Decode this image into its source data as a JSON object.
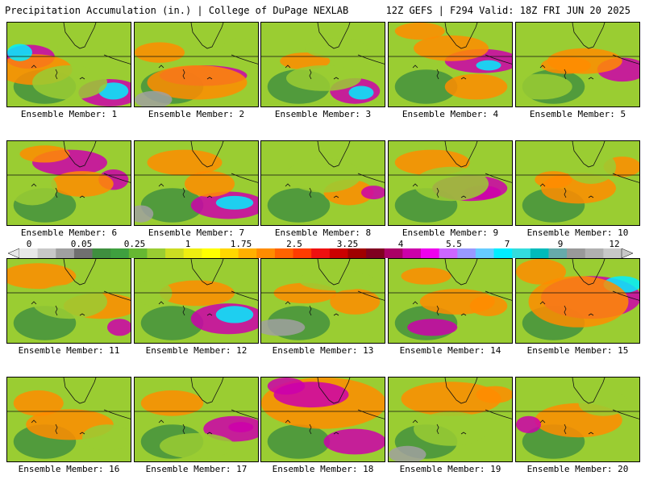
{
  "header": {
    "left": "Precipitation Accumulation (in.) | College of DuPage NEXLAB",
    "right": "12Z GEFS | F294 Valid: 18Z FRI JUN 20 2025"
  },
  "member_prefix": "Ensemble Member: ",
  "members": [
    {
      "id": "1",
      "blobs": [
        [
          0.18,
          0.4,
          0.2,
          0.14,
          3
        ],
        [
          0.22,
          0.55,
          0.3,
          0.18,
          2
        ],
        [
          0.82,
          0.82,
          0.25,
          0.16,
          3
        ],
        [
          0.85,
          0.8,
          0.12,
          0.1,
          4
        ],
        [
          0.1,
          0.35,
          0.1,
          0.1,
          4
        ],
        [
          0.5,
          0.7,
          0.3,
          0.2,
          1
        ],
        [
          0.6,
          0.3,
          0.2,
          0.12,
          1
        ]
      ]
    },
    {
      "id": "2",
      "blobs": [
        [
          0.55,
          0.62,
          0.35,
          0.12,
          3
        ],
        [
          0.5,
          0.7,
          0.4,
          0.2,
          2
        ],
        [
          0.2,
          0.35,
          0.2,
          0.12,
          2
        ],
        [
          0.85,
          0.3,
          0.15,
          0.12,
          1
        ],
        [
          0.15,
          0.9,
          0.15,
          0.1,
          5
        ]
      ]
    },
    {
      "id": "3",
      "blobs": [
        [
          0.75,
          0.8,
          0.2,
          0.15,
          3
        ],
        [
          0.8,
          0.82,
          0.1,
          0.08,
          4
        ],
        [
          0.35,
          0.45,
          0.2,
          0.1,
          2
        ],
        [
          0.6,
          0.3,
          0.25,
          0.12,
          1
        ],
        [
          0.5,
          0.65,
          0.3,
          0.15,
          1
        ]
      ]
    },
    {
      "id": "4",
      "blobs": [
        [
          0.75,
          0.45,
          0.3,
          0.14,
          3
        ],
        [
          0.5,
          0.3,
          0.3,
          0.15,
          2
        ],
        [
          0.25,
          0.1,
          0.2,
          0.1,
          2
        ],
        [
          0.7,
          0.75,
          0.25,
          0.15,
          2
        ],
        [
          0.8,
          0.5,
          0.1,
          0.06,
          4
        ]
      ]
    },
    {
      "id": "5",
      "blobs": [
        [
          0.85,
          0.55,
          0.2,
          0.14,
          3
        ],
        [
          0.55,
          0.45,
          0.3,
          0.15,
          2
        ],
        [
          0.2,
          0.75,
          0.25,
          0.15,
          1
        ],
        [
          0.4,
          0.5,
          0.2,
          0.1,
          2
        ]
      ]
    },
    {
      "id": "6",
      "blobs": [
        [
          0.5,
          0.25,
          0.3,
          0.15,
          3
        ],
        [
          0.3,
          0.15,
          0.2,
          0.1,
          2
        ],
        [
          0.85,
          0.45,
          0.12,
          0.12,
          3
        ],
        [
          0.6,
          0.5,
          0.25,
          0.15,
          2
        ],
        [
          0.2,
          0.55,
          0.2,
          0.2,
          1
        ]
      ]
    },
    {
      "id": "7",
      "blobs": [
        [
          0.75,
          0.75,
          0.3,
          0.16,
          3
        ],
        [
          0.8,
          0.72,
          0.15,
          0.08,
          4
        ],
        [
          0.4,
          0.25,
          0.3,
          0.15,
          2
        ],
        [
          0.6,
          0.5,
          0.2,
          0.15,
          2
        ],
        [
          0.05,
          0.85,
          0.1,
          0.1,
          5
        ]
      ]
    },
    {
      "id": "8",
      "blobs": [
        [
          0.7,
          0.6,
          0.2,
          0.15,
          2
        ],
        [
          0.9,
          0.6,
          0.1,
          0.08,
          3
        ],
        [
          0.5,
          0.4,
          0.3,
          0.2,
          1
        ]
      ]
    },
    {
      "id": "9",
      "blobs": [
        [
          0.65,
          0.55,
          0.3,
          0.15,
          3
        ],
        [
          0.75,
          0.6,
          0.15,
          0.08,
          3
        ],
        [
          0.35,
          0.25,
          0.3,
          0.15,
          2
        ],
        [
          0.5,
          0.5,
          0.3,
          0.2,
          1
        ]
      ]
    },
    {
      "id": "10",
      "blobs": [
        [
          0.5,
          0.55,
          0.3,
          0.18,
          2
        ],
        [
          0.85,
          0.3,
          0.15,
          0.12,
          2
        ],
        [
          0.3,
          0.45,
          0.15,
          0.1,
          2
        ],
        [
          0.6,
          0.3,
          0.2,
          0.2,
          1
        ]
      ]
    },
    {
      "id": "11",
      "blobs": [
        [
          0.25,
          0.2,
          0.3,
          0.15,
          2
        ],
        [
          0.75,
          0.55,
          0.3,
          0.15,
          2
        ],
        [
          0.9,
          0.8,
          0.1,
          0.1,
          3
        ],
        [
          0.5,
          0.5,
          0.3,
          0.2,
          1
        ]
      ]
    },
    {
      "id": "12",
      "blobs": [
        [
          0.75,
          0.7,
          0.3,
          0.18,
          3
        ],
        [
          0.8,
          0.65,
          0.15,
          0.1,
          4
        ],
        [
          0.5,
          0.4,
          0.3,
          0.15,
          2
        ],
        [
          0.15,
          0.4,
          0.15,
          0.15,
          1
        ]
      ]
    },
    {
      "id": "13",
      "blobs": [
        [
          0.35,
          0.4,
          0.25,
          0.12,
          2
        ],
        [
          0.75,
          0.5,
          0.2,
          0.15,
          2
        ],
        [
          0.15,
          0.8,
          0.2,
          0.1,
          5
        ],
        [
          0.6,
          0.25,
          0.3,
          0.12,
          1
        ]
      ]
    },
    {
      "id": "14",
      "blobs": [
        [
          0.55,
          0.5,
          0.3,
          0.15,
          2
        ],
        [
          0.3,
          0.2,
          0.2,
          0.1,
          2
        ],
        [
          0.35,
          0.8,
          0.2,
          0.1,
          3
        ],
        [
          0.8,
          0.55,
          0.15,
          0.12,
          2
        ]
      ]
    },
    {
      "id": "15",
      "blobs": [
        [
          0.6,
          0.45,
          0.4,
          0.25,
          3
        ],
        [
          0.85,
          0.3,
          0.15,
          0.1,
          4
        ],
        [
          0.5,
          0.5,
          0.4,
          0.3,
          2
        ],
        [
          0.2,
          0.15,
          0.2,
          0.15,
          2
        ]
      ]
    },
    {
      "id": "16",
      "blobs": [
        [
          0.5,
          0.55,
          0.35,
          0.18,
          2
        ],
        [
          0.25,
          0.3,
          0.2,
          0.15,
          2
        ],
        [
          0.8,
          0.7,
          0.2,
          0.15,
          1
        ]
      ]
    },
    {
      "id": "17",
      "blobs": [
        [
          0.8,
          0.6,
          0.25,
          0.15,
          3
        ],
        [
          0.85,
          0.58,
          0.1,
          0.06,
          3
        ],
        [
          0.3,
          0.3,
          0.25,
          0.15,
          2
        ],
        [
          0.5,
          0.8,
          0.3,
          0.15,
          1
        ]
      ]
    },
    {
      "id": "18",
      "blobs": [
        [
          0.5,
          0.3,
          0.5,
          0.3,
          2
        ],
        [
          0.4,
          0.2,
          0.3,
          0.15,
          3
        ],
        [
          0.75,
          0.75,
          0.25,
          0.15,
          3
        ],
        [
          0.2,
          0.1,
          0.15,
          0.1,
          3
        ]
      ]
    },
    {
      "id": "19",
      "blobs": [
        [
          0.5,
          0.25,
          0.4,
          0.2,
          2
        ],
        [
          0.85,
          0.2,
          0.15,
          0.1,
          2
        ],
        [
          0.5,
          0.6,
          0.3,
          0.2,
          1
        ],
        [
          0.15,
          0.9,
          0.15,
          0.1,
          5
        ]
      ]
    },
    {
      "id": "20",
      "blobs": [
        [
          0.5,
          0.5,
          0.35,
          0.2,
          2
        ],
        [
          0.1,
          0.55,
          0.1,
          0.1,
          3
        ],
        [
          0.7,
          0.3,
          0.2,
          0.15,
          1
        ]
      ]
    }
  ],
  "colorbar": {
    "labels": [
      "0",
      "0.05",
      "0.25",
      "1",
      "1.75",
      "2.5",
      "3.25",
      "4",
      "5.5",
      "7",
      "9",
      "12"
    ],
    "colors": [
      "#e8e8e8",
      "#c8c8c8",
      "#a0a0a0",
      "#707070",
      "#3f8f3f",
      "#3fa03f",
      "#66b832",
      "#9acd32",
      "#ccdd22",
      "#eeee11",
      "#ffff00",
      "#ffd700",
      "#ffb000",
      "#ff8c00",
      "#ff6400",
      "#ff3c00",
      "#ee1010",
      "#cc0000",
      "#a00000",
      "#800020",
      "#aa0066",
      "#cc00aa",
      "#ee00ee",
      "#cc66ff",
      "#9999ff",
      "#66ccff",
      "#00eeff",
      "#33dddd",
      "#00bbbb",
      "#66aaaa",
      "#999999",
      "#b0b0b0",
      "#c8c8c8"
    ],
    "field_levels": [
      "#3f8f3f",
      "#9acd32",
      "#ff8c00",
      "#cc00aa",
      "#00eeff",
      "#a0a0a0"
    ]
  }
}
